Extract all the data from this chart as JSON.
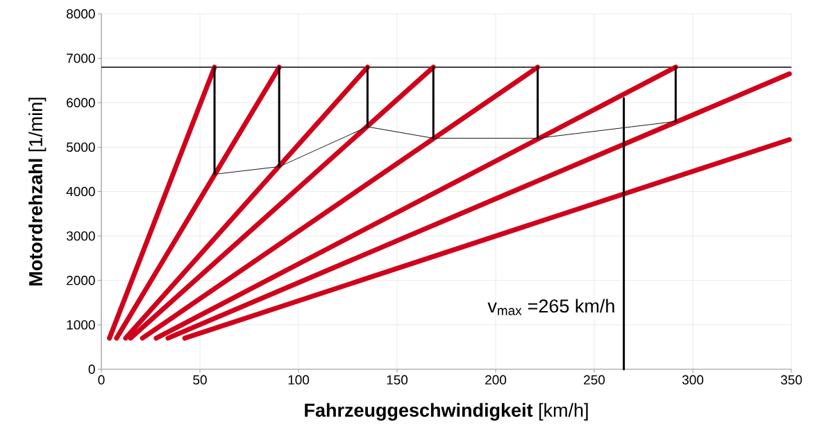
{
  "chart_data": {
    "type": "line",
    "xlabel": "**Fahrzeuggeschwindigkeit** [km/h]",
    "ylabel": "**Motordrehzahl** [1/min]",
    "xlim": [
      0,
      350
    ],
    "xticks": [
      0,
      50,
      100,
      150,
      200,
      250,
      300,
      350
    ],
    "ylim": [
      0,
      8000
    ],
    "yticks": [
      0,
      1000,
      2000,
      3000,
      4000,
      5000,
      6000,
      7000,
      8000
    ],
    "grid": true,
    "ref_lines": [
      {
        "axis": "y",
        "value": 6800,
        "color": "#000000"
      }
    ],
    "annotations": [
      {
        "text": "v$_{max}$ =265 km/h",
        "x": 265,
        "y": 1400
      }
    ],
    "series": [
      {
        "color": "#d0021b",
        "x": [
          4.1,
          57.4
        ],
        "values": [
          700,
          6800
        ]
      },
      {
        "color": "#d0021b",
        "x": [
          7.7,
          90.2
        ],
        "values": [
          700,
          6800
        ]
      },
      {
        "color": "#d0021b",
        "x": [
          12.3,
          135
        ],
        "values": [
          700,
          6800
        ]
      },
      {
        "color": "#d0021b",
        "x": [
          14.8,
          168.4
        ],
        "values": [
          700,
          6800
        ]
      },
      {
        "color": "#d0021b",
        "x": [
          20.8,
          221.3
        ],
        "values": [
          700,
          6800
        ]
      },
      {
        "color": "#d0021b",
        "x": [
          27.8,
          291.3
        ],
        "values": [
          700,
          6800
        ]
      },
      {
        "color": "#d0021b",
        "x": [
          33.8,
          349
        ],
        "values": [
          700,
          6650
        ]
      },
      {
        "color": "#d0021b",
        "x": [
          42.3,
          349
        ],
        "values": [
          700,
          5170
        ]
      },
      {
        "color": "#000000",
        "x": [
          57.4,
          57.4
        ],
        "values": [
          6800,
          4390
        ]
      },
      {
        "color": "#000000",
        "x": [
          90.2,
          90.2
        ],
        "values": [
          6800,
          4560
        ]
      },
      {
        "color": "#000000",
        "x": [
          135,
          135
        ],
        "values": [
          6800,
          5460
        ]
      },
      {
        "color": "#000000",
        "x": [
          168.4,
          168.4
        ],
        "values": [
          6800,
          5200
        ]
      },
      {
        "color": "#000000",
        "x": [
          221.3,
          221.3
        ],
        "values": [
          6800,
          5200
        ]
      },
      {
        "color": "#000000",
        "x": [
          291.3,
          291.3
        ],
        "values": [
          6800,
          5580
        ]
      },
      {
        "color": "#000000",
        "x": [
          265,
          265
        ],
        "values": [
          0,
          6100
        ]
      },
      {
        "color": "#1a1a1a",
        "x": [
          57.4,
          90.2,
          135,
          168.4,
          221.3,
          291.3
        ],
        "values": [
          4390,
          4560,
          5460,
          5200,
          5200,
          5580
        ]
      }
    ]
  }
}
